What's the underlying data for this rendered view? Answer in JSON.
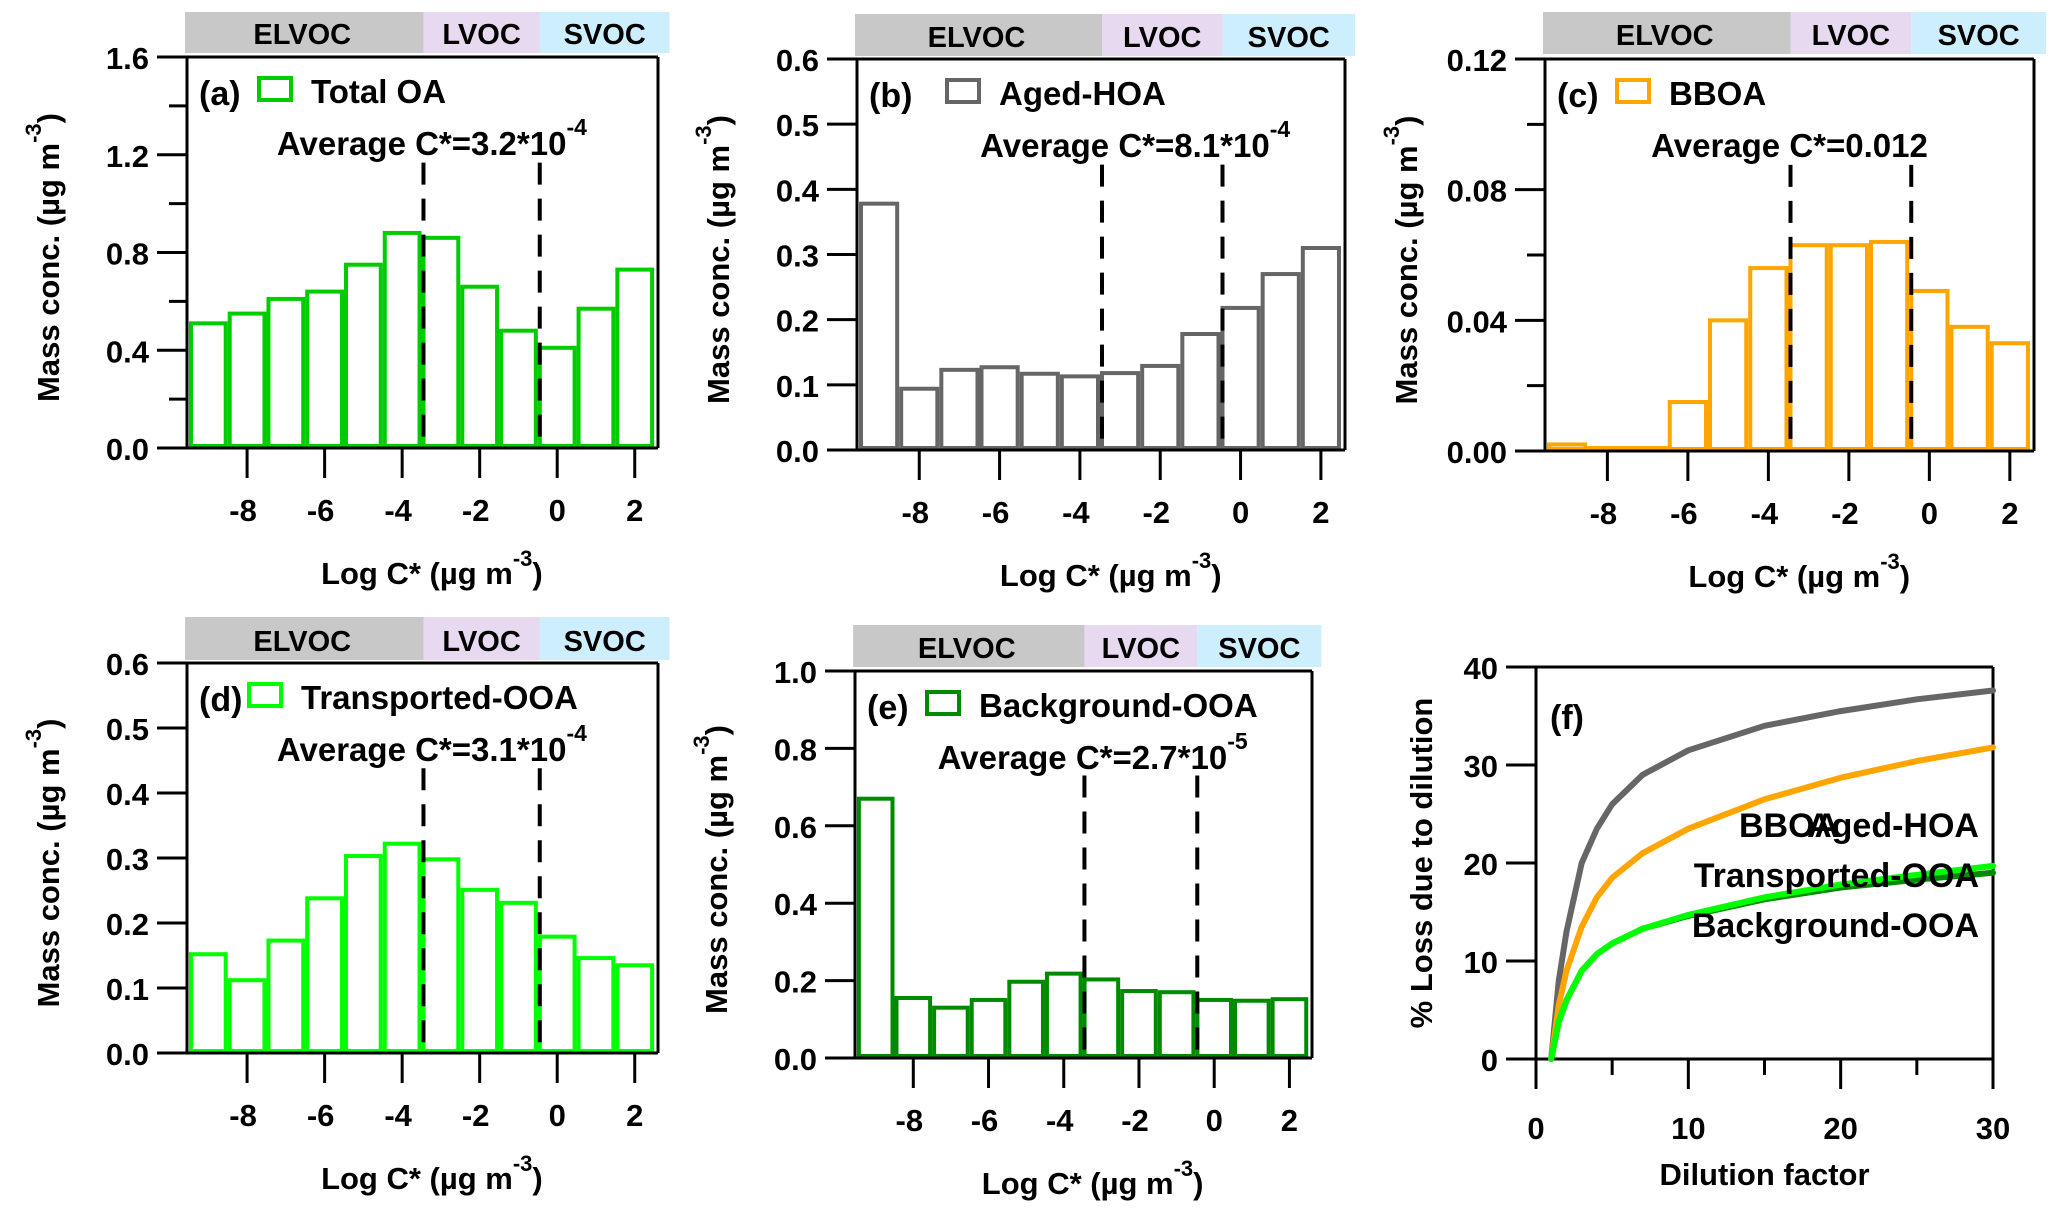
{
  "chart_data": [
    {
      "id": "a",
      "type": "bar",
      "panel_label": "(a)",
      "legend": "Total OA",
      "annotation": {
        "text": "Average C*=3.2*10",
        "exponent": "-4"
      },
      "color": "#00cc00",
      "categories": [
        -9,
        -8,
        -7,
        -6,
        -5,
        -4,
        -3,
        -2,
        -1,
        0,
        1,
        2
      ],
      "values": [
        0.51,
        0.55,
        0.61,
        0.64,
        0.75,
        0.88,
        0.86,
        0.66,
        0.48,
        0.41,
        0.57,
        0.73
      ],
      "xlabel": "Log C* (µg m",
      "xlabel_exp": "-3",
      "xlabel_end": ")",
      "ylabel": "Mass conc. (µg m",
      "ylabel_exp": "-3",
      "ylabel_end": ")",
      "ylim": [
        0,
        1.6
      ],
      "yticks": [
        "0.0",
        "0.4",
        "0.8",
        "1.2",
        "1.6"
      ],
      "yticks_values": [
        0,
        0.4,
        0.8,
        1.2,
        1.6
      ],
      "yminor": [
        0.2,
        0.6,
        1.0,
        1.4
      ],
      "xlim": [
        -9.55,
        2.6
      ],
      "xticks": [
        -8,
        -6,
        -4,
        -2,
        0,
        2
      ],
      "dashed_lines": [
        -3.45,
        -0.45
      ],
      "volatility_bands": [
        {
          "label": "ELVOC",
          "from": -9.6,
          "to": -3.45
        },
        {
          "label": "LVOC",
          "from": -3.45,
          "to": -0.45
        },
        {
          "label": "SVOC",
          "from": -0.45,
          "to": 2.9
        }
      ]
    },
    {
      "id": "b",
      "type": "bar",
      "panel_label": "(b)",
      "legend": "Aged-HOA",
      "annotation": {
        "text": "Average C*=8.1*10",
        "exponent": "-4"
      },
      "color": "#666666",
      "categories": [
        -9,
        -8,
        -7,
        -6,
        -5,
        -4,
        -3,
        -2,
        -1,
        0,
        1,
        2
      ],
      "values": [
        0.378,
        0.094,
        0.123,
        0.127,
        0.117,
        0.113,
        0.118,
        0.129,
        0.178,
        0.218,
        0.27,
        0.31
      ],
      "xlabel": "Log C* (µg m",
      "xlabel_exp": "-3",
      "xlabel_end": ")",
      "ylabel": "Mass conc. (µg m",
      "ylabel_exp": "-3",
      "ylabel_end": ")",
      "ylim": [
        0,
        0.6
      ],
      "yticks": [
        "0.0",
        "0.1",
        "0.2",
        "0.3",
        "0.4",
        "0.5",
        "0.6"
      ],
      "yticks_values": [
        0,
        0.1,
        0.2,
        0.3,
        0.4,
        0.5,
        0.6
      ],
      "yminor": [],
      "xlim": [
        -9.55,
        2.6
      ],
      "xticks": [
        -8,
        -6,
        -4,
        -2,
        0,
        2
      ],
      "dashed_lines": [
        -3.45,
        -0.45
      ],
      "volatility_bands": [
        {
          "label": "ELVOC",
          "from": -9.6,
          "to": -3.45
        },
        {
          "label": "LVOC",
          "from": -3.45,
          "to": -0.45
        },
        {
          "label": "SVOC",
          "from": -0.45,
          "to": 2.85
        }
      ]
    },
    {
      "id": "c",
      "type": "bar",
      "panel_label": "(c)",
      "legend": "BBOA",
      "annotation": {
        "text": "Average C*=0.012",
        "exponent": ""
      },
      "color": "#ffa500",
      "categories": [
        -9,
        -8,
        -7,
        -6,
        -5,
        -4,
        -3,
        -2,
        -1,
        0,
        1,
        2
      ],
      "values": [
        0.002,
        0,
        0,
        0.015,
        0.04,
        0.056,
        0.063,
        0.063,
        0.064,
        0.049,
        0.038,
        0.033
      ],
      "xlabel": "Log C* (µg m",
      "xlabel_exp": "-3",
      "xlabel_end": ")",
      "ylabel": "Mass conc. (µg m",
      "ylabel_exp": "-3",
      "ylabel_end": ")",
      "ylim": [
        0,
        0.12
      ],
      "yticks": [
        "0.00",
        "0.04",
        "0.08",
        "0.12"
      ],
      "yticks_values": [
        0,
        0.04,
        0.08,
        0.12
      ],
      "yminor": [
        0.02,
        0.06,
        0.1
      ],
      "xlim": [
        -9.55,
        2.6
      ],
      "xticks": [
        -8,
        -6,
        -4,
        -2,
        0,
        2
      ],
      "dashed_lines": [
        -3.45,
        -0.45
      ],
      "volatility_bands": [
        {
          "label": "ELVOC",
          "from": -9.6,
          "to": -3.45
        },
        {
          "label": "LVOC",
          "from": -3.45,
          "to": -0.45
        },
        {
          "label": "SVOC",
          "from": -0.45,
          "to": 2.9
        }
      ]
    },
    {
      "id": "d",
      "type": "bar",
      "panel_label": "(d)",
      "legend": "Transported-OOA",
      "annotation": {
        "text": "Average C*=3.1*10",
        "exponent": "-4"
      },
      "color": "#00ff00",
      "categories": [
        -9,
        -8,
        -7,
        -6,
        -5,
        -4,
        -3,
        -2,
        -1,
        0,
        1,
        2
      ],
      "values": [
        0.152,
        0.112,
        0.173,
        0.238,
        0.303,
        0.322,
        0.298,
        0.251,
        0.231,
        0.179,
        0.146,
        0.135
      ],
      "xlabel": "Log C* (µg m",
      "xlabel_exp": "-3",
      "xlabel_end": ")",
      "ylabel": "Mass conc. (µg m",
      "ylabel_exp": "-3",
      "ylabel_end": ")",
      "ylim": [
        0,
        0.6
      ],
      "yticks": [
        "0.0",
        "0.1",
        "0.2",
        "0.3",
        "0.4",
        "0.5",
        "0.6"
      ],
      "yticks_values": [
        0,
        0.1,
        0.2,
        0.3,
        0.4,
        0.5,
        0.6
      ],
      "yminor": [],
      "xlim": [
        -9.55,
        2.6
      ],
      "xticks": [
        -8,
        -6,
        -4,
        -2,
        0,
        2
      ],
      "dashed_lines": [
        -3.45,
        -0.45
      ],
      "volatility_bands": [
        {
          "label": "ELVOC",
          "from": -9.6,
          "to": -3.45
        },
        {
          "label": "LVOC",
          "from": -3.45,
          "to": -0.45
        },
        {
          "label": "SVOC",
          "from": -0.45,
          "to": 2.9
        }
      ]
    },
    {
      "id": "e",
      "type": "bar",
      "panel_label": "(e)",
      "legend": "Background-OOA",
      "annotation": {
        "text": "Average C*=2.7*10",
        "exponent": "-5"
      },
      "color": "#008a00",
      "categories": [
        -9,
        -8,
        -7,
        -6,
        -5,
        -4,
        -3,
        -2,
        -1,
        0,
        1,
        2
      ],
      "values": [
        0.67,
        0.155,
        0.13,
        0.15,
        0.197,
        0.218,
        0.203,
        0.173,
        0.17,
        0.15,
        0.148,
        0.152
      ],
      "xlabel": "Log C* (µg m",
      "xlabel_exp": "-3",
      "xlabel_end": ")",
      "ylabel": "Mass conc. (µg m",
      "ylabel_exp": "-3",
      "ylabel_end": ")",
      "ylim": [
        0,
        1.0
      ],
      "yticks": [
        "0.0",
        "0.2",
        "0.4",
        "0.6",
        "0.8",
        "1.0"
      ],
      "yticks_values": [
        0,
        0.2,
        0.4,
        0.6,
        0.8,
        1.0
      ],
      "yminor": [],
      "xlim": [
        -9.55,
        2.6
      ],
      "xticks": [
        -8,
        -6,
        -4,
        -2,
        0,
        2
      ],
      "dashed_lines": [
        -3.45,
        -0.45
      ],
      "volatility_bands": [
        {
          "label": "ELVOC",
          "from": -9.6,
          "to": -3.45
        },
        {
          "label": "LVOC",
          "from": -3.45,
          "to": -0.45
        },
        {
          "label": "SVOC",
          "from": -0.45,
          "to": 2.85
        }
      ]
    },
    {
      "id": "f",
      "type": "line",
      "panel_label": "(f)",
      "xlabel": "Dilution factor",
      "ylabel": "% Loss due to dilution",
      "xlim": [
        0,
        30
      ],
      "ylim": [
        0,
        40
      ],
      "xticks": [
        0,
        10,
        20,
        30
      ],
      "xminor": [
        5,
        15,
        25
      ],
      "yticks": [
        0,
        10,
        20,
        30,
        40
      ],
      "series": [
        {
          "name": "Aged-HOA",
          "color": "#666666",
          "x": [
            1,
            1.5,
            2,
            3,
            4,
            5,
            7,
            10,
            15,
            20,
            25,
            30
          ],
          "y": [
            0,
            8,
            13,
            20,
            23.5,
            26,
            29,
            31.5,
            34,
            35.5,
            36.7,
            37.6
          ]
        },
        {
          "name": "BBOA",
          "color": "#ffa500",
          "x": [
            1,
            1.5,
            2,
            3,
            4,
            5,
            7,
            10,
            15,
            20,
            25,
            30
          ],
          "y": [
            0,
            5.5,
            9,
            13.5,
            16.5,
            18.5,
            21,
            23.5,
            26.5,
            28.7,
            30.4,
            31.8
          ]
        },
        {
          "name": "Background-OOA",
          "color": "#008a00",
          "x": [
            1,
            1.5,
            2,
            3,
            4,
            5,
            7,
            10,
            15,
            20,
            25,
            30
          ],
          "y": [
            0,
            3.8,
            6,
            9,
            10.7,
            11.8,
            13.3,
            14.6,
            16.3,
            17.5,
            18.3,
            19.0
          ]
        },
        {
          "name": "Transported-OOA",
          "color": "#00ff00",
          "x": [
            1,
            1.5,
            2,
            3,
            4,
            5,
            7,
            10,
            15,
            20,
            25,
            30
          ],
          "y": [
            0,
            3.8,
            6,
            9,
            10.7,
            11.8,
            13.3,
            14.7,
            16.5,
            17.8,
            18.8,
            19.7
          ]
        }
      ],
      "legend": [
        {
          "label": "BBOA",
          "color": "#ffa500"
        },
        {
          "label": "Aged-HOA",
          "color": "#666666"
        },
        {
          "label": "Transported-OOA",
          "color": "#00ff00"
        },
        {
          "label": "Background-OOA",
          "color": "#008a00"
        }
      ],
      "legend_position": "bottom-right"
    }
  ],
  "band_colors": {
    "ELVOC": "#c8c8c8",
    "LVOC": "#e6d9f0",
    "SVOC": "#cdeefc"
  }
}
